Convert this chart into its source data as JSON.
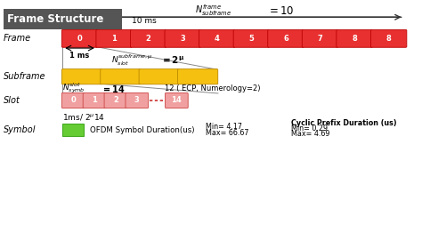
{
  "title": "Frame Structure",
  "title_bg": "#555555",
  "frame_color": "#e83030",
  "frame_edge": "#bb0000",
  "subframe_color": "#f5c010",
  "subframe_edge": "#bb8800",
  "slot_color": "#f0a0a0",
  "slot_edge": "#cc4444",
  "symbol_color": "#66cc33",
  "symbol_edge": "#44aa22",
  "frame_labels": [
    "0",
    "1",
    "2",
    "3",
    "4",
    "5",
    "6",
    "7",
    "8",
    "8"
  ],
  "slot_labels": [
    "0",
    "1",
    "2",
    "3",
    "14"
  ],
  "n_frame": 10,
  "n_subframe": 4
}
